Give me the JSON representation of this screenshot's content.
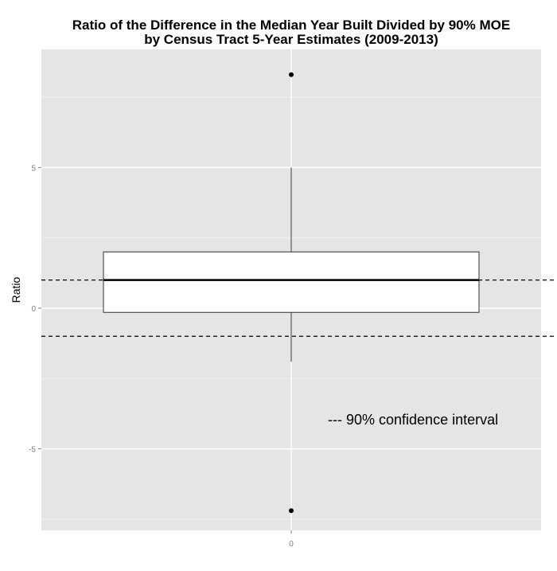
{
  "chart_data": {
    "type": "box",
    "title_line1": "Ratio of the Difference in the Median Year Built Divided by 90% MOE",
    "title_line2": "by Census Tract 5-Year Estimates (2009-2013)",
    "ylabel": "Ratio",
    "xlabel": "",
    "ylim": [
      -7.9,
      9.2
    ],
    "y_ticks": [
      -5,
      0,
      5
    ],
    "y_tick_labels": [
      "-5",
      "0",
      "5"
    ],
    "x_tick_label": "0",
    "grid": true,
    "box": {
      "q1": -0.15,
      "median": 1.0,
      "q3": 2.0,
      "whisker_low": -1.9,
      "whisker_high": 5.0,
      "outliers": [
        8.3,
        -7.2
      ]
    },
    "reference_lines": [
      1.0,
      -1.0
    ],
    "annotation": "--- 90% confidence interval",
    "colors": {
      "panel": "#e5e5e5",
      "grid_major": "#ffffff",
      "grid_minor": "#f2f2f2",
      "box_fill": "#ffffff",
      "box_stroke": "#333333",
      "ref_line": "#000000"
    }
  }
}
